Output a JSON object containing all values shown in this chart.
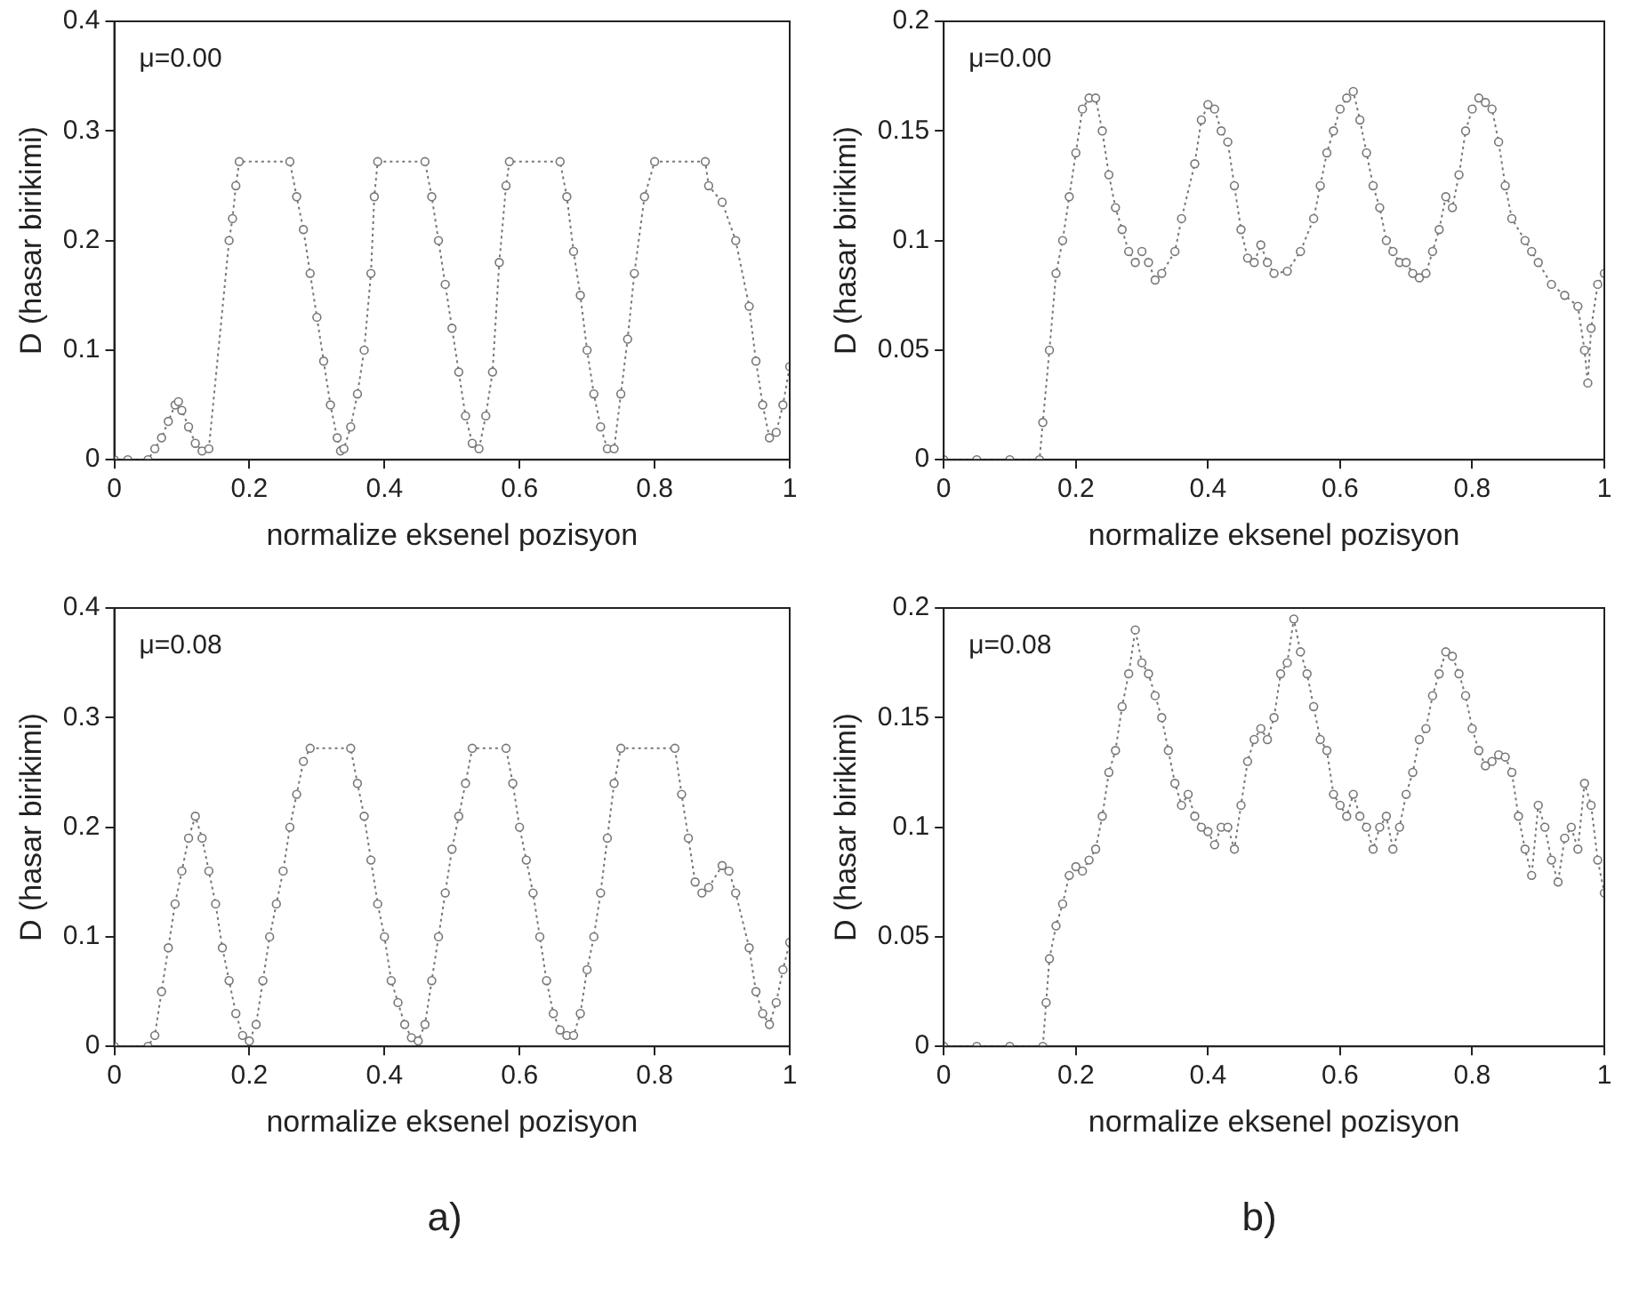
{
  "chart_data": [
    {
      "type": "line",
      "xlabel": "normalize eksenel pozisyon",
      "ylabel": "D (hasar birikimi)",
      "annotations": [
        "μ=0.00"
      ],
      "xlim": [
        0,
        1
      ],
      "xticks": [
        0,
        0.2,
        0.4,
        0.6,
        0.8,
        1
      ],
      "ylim": [
        0,
        0.4
      ],
      "yticks": [
        0,
        0.1,
        0.2,
        0.3,
        0.4
      ],
      "grid": false,
      "legend": false,
      "marker": "circle",
      "line_style": "dotted",
      "series": [
        {
          "color": "#777777",
          "x": [
            0,
            0.02,
            0.05,
            0.06,
            0.07,
            0.08,
            0.09,
            0.095,
            0.1,
            0.11,
            0.12,
            0.13,
            0.14,
            0.17,
            0.175,
            0.18,
            0.185,
            0.26,
            0.27,
            0.28,
            0.29,
            0.3,
            0.31,
            0.32,
            0.33,
            0.335,
            0.34,
            0.35,
            0.36,
            0.37,
            0.38,
            0.385,
            0.39,
            0.46,
            0.47,
            0.48,
            0.49,
            0.5,
            0.51,
            0.52,
            0.53,
            0.54,
            0.55,
            0.56,
            0.57,
            0.58,
            0.585,
            0.66,
            0.67,
            0.68,
            0.69,
            0.7,
            0.71,
            0.72,
            0.73,
            0.74,
            0.75,
            0.76,
            0.77,
            0.785,
            0.8,
            0.875,
            0.88,
            0.9,
            0.92,
            0.94,
            0.95,
            0.96,
            0.97,
            0.98,
            0.99,
            1
          ],
          "values": [
            0,
            0,
            0,
            0.01,
            0.02,
            0.035,
            0.05,
            0.053,
            0.045,
            0.03,
            0.015,
            0.008,
            0.01,
            0.2,
            0.22,
            0.25,
            0.272,
            0.272,
            0.24,
            0.21,
            0.17,
            0.13,
            0.09,
            0.05,
            0.02,
            0.008,
            0.01,
            0.03,
            0.06,
            0.1,
            0.17,
            0.24,
            0.272,
            0.272,
            0.24,
            0.2,
            0.16,
            0.12,
            0.08,
            0.04,
            0.015,
            0.01,
            0.04,
            0.08,
            0.18,
            0.25,
            0.272,
            0.272,
            0.24,
            0.19,
            0.15,
            0.1,
            0.06,
            0.03,
            0.01,
            0.01,
            0.06,
            0.11,
            0.17,
            0.24,
            0.272,
            0.272,
            0.25,
            0.235,
            0.2,
            0.14,
            0.09,
            0.05,
            0.02,
            0.025,
            0.05,
            0.085
          ]
        }
      ]
    },
    {
      "type": "line",
      "xlabel": "normalize eksenel pozisyon",
      "ylabel": "D (hasar birikimi)",
      "annotations": [
        "μ=0.00"
      ],
      "xlim": [
        0,
        1
      ],
      "xticks": [
        0,
        0.2,
        0.4,
        0.6,
        0.8,
        1
      ],
      "ylim": [
        0,
        0.2
      ],
      "yticks": [
        0,
        0.05,
        0.1,
        0.15,
        0.2
      ],
      "grid": false,
      "legend": false,
      "marker": "circle",
      "line_style": "dotted",
      "series": [
        {
          "color": "#777777",
          "x": [
            0,
            0.05,
            0.1,
            0.145,
            0.15,
            0.16,
            0.17,
            0.18,
            0.19,
            0.2,
            0.21,
            0.22,
            0.23,
            0.24,
            0.25,
            0.26,
            0.27,
            0.28,
            0.29,
            0.3,
            0.31,
            0.32,
            0.33,
            0.35,
            0.36,
            0.38,
            0.39,
            0.4,
            0.41,
            0.42,
            0.43,
            0.44,
            0.45,
            0.46,
            0.47,
            0.48,
            0.49,
            0.5,
            0.52,
            0.54,
            0.56,
            0.57,
            0.58,
            0.59,
            0.6,
            0.61,
            0.62,
            0.63,
            0.64,
            0.65,
            0.66,
            0.67,
            0.68,
            0.69,
            0.7,
            0.71,
            0.72,
            0.73,
            0.74,
            0.75,
            0.76,
            0.77,
            0.78,
            0.79,
            0.8,
            0.81,
            0.82,
            0.83,
            0.84,
            0.85,
            0.86,
            0.88,
            0.89,
            0.9,
            0.92,
            0.94,
            0.96,
            0.97,
            0.975,
            0.98,
            0.99,
            1
          ],
          "values": [
            0,
            0,
            0,
            0,
            0.017,
            0.05,
            0.085,
            0.1,
            0.12,
            0.14,
            0.16,
            0.165,
            0.165,
            0.15,
            0.13,
            0.115,
            0.105,
            0.095,
            0.09,
            0.095,
            0.09,
            0.082,
            0.085,
            0.095,
            0.11,
            0.135,
            0.155,
            0.162,
            0.16,
            0.15,
            0.145,
            0.125,
            0.105,
            0.092,
            0.09,
            0.098,
            0.09,
            0.085,
            0.086,
            0.095,
            0.11,
            0.125,
            0.14,
            0.15,
            0.16,
            0.165,
            0.168,
            0.155,
            0.14,
            0.125,
            0.115,
            0.1,
            0.095,
            0.09,
            0.09,
            0.085,
            0.083,
            0.085,
            0.095,
            0.105,
            0.12,
            0.115,
            0.13,
            0.15,
            0.16,
            0.165,
            0.163,
            0.16,
            0.145,
            0.125,
            0.11,
            0.1,
            0.095,
            0.09,
            0.08,
            0.075,
            0.07,
            0.05,
            0.035,
            0.06,
            0.08,
            0.085
          ]
        }
      ]
    },
    {
      "type": "line",
      "xlabel": "normalize eksenel pozisyon",
      "ylabel": "D (hasar birikimi)",
      "annotations": [
        "μ=0.08",
        "a)"
      ],
      "xlim": [
        0,
        1
      ],
      "xticks": [
        0,
        0.2,
        0.4,
        0.6,
        0.8,
        1
      ],
      "ylim": [
        0,
        0.4
      ],
      "yticks": [
        0,
        0.1,
        0.2,
        0.3,
        0.4
      ],
      "grid": false,
      "legend": false,
      "marker": "circle",
      "line_style": "dotted",
      "series": [
        {
          "color": "#777777",
          "x": [
            0,
            0.05,
            0.06,
            0.07,
            0.08,
            0.09,
            0.1,
            0.11,
            0.12,
            0.13,
            0.14,
            0.15,
            0.16,
            0.17,
            0.18,
            0.19,
            0.2,
            0.21,
            0.22,
            0.23,
            0.24,
            0.25,
            0.26,
            0.27,
            0.28,
            0.29,
            0.35,
            0.36,
            0.37,
            0.38,
            0.39,
            0.4,
            0.41,
            0.42,
            0.43,
            0.44,
            0.45,
            0.46,
            0.47,
            0.48,
            0.49,
            0.5,
            0.51,
            0.52,
            0.53,
            0.58,
            0.59,
            0.6,
            0.61,
            0.62,
            0.63,
            0.64,
            0.65,
            0.66,
            0.67,
            0.68,
            0.69,
            0.7,
            0.71,
            0.72,
            0.73,
            0.74,
            0.75,
            0.83,
            0.84,
            0.85,
            0.86,
            0.87,
            0.88,
            0.9,
            0.91,
            0.92,
            0.94,
            0.95,
            0.96,
            0.97,
            0.98,
            0.99,
            1
          ],
          "values": [
            0,
            0,
            0.01,
            0.05,
            0.09,
            0.13,
            0.16,
            0.19,
            0.21,
            0.19,
            0.16,
            0.13,
            0.09,
            0.06,
            0.03,
            0.01,
            0.005,
            0.02,
            0.06,
            0.1,
            0.13,
            0.16,
            0.2,
            0.23,
            0.26,
            0.272,
            0.272,
            0.24,
            0.21,
            0.17,
            0.13,
            0.1,
            0.06,
            0.04,
            0.02,
            0.008,
            0.005,
            0.02,
            0.06,
            0.1,
            0.14,
            0.18,
            0.21,
            0.24,
            0.272,
            0.272,
            0.24,
            0.2,
            0.17,
            0.14,
            0.1,
            0.06,
            0.03,
            0.015,
            0.01,
            0.01,
            0.03,
            0.07,
            0.1,
            0.14,
            0.19,
            0.24,
            0.272,
            0.272,
            0.23,
            0.19,
            0.15,
            0.14,
            0.145,
            0.165,
            0.16,
            0.14,
            0.09,
            0.05,
            0.03,
            0.02,
            0.04,
            0.07,
            0.095
          ]
        }
      ]
    },
    {
      "type": "line",
      "xlabel": "normalize eksenel pozisyon",
      "ylabel": "D (hasar birikimi)",
      "annotations": [
        "μ=0.08",
        "b)"
      ],
      "xlim": [
        0,
        1
      ],
      "xticks": [
        0,
        0.2,
        0.4,
        0.6,
        0.8,
        1
      ],
      "ylim": [
        0,
        0.2
      ],
      "yticks": [
        0,
        0.05,
        0.1,
        0.15,
        0.2
      ],
      "grid": false,
      "legend": false,
      "marker": "circle",
      "line_style": "dotted",
      "series": [
        {
          "color": "#777777",
          "x": [
            0,
            0.05,
            0.1,
            0.15,
            0.155,
            0.16,
            0.17,
            0.18,
            0.19,
            0.2,
            0.21,
            0.22,
            0.23,
            0.24,
            0.25,
            0.26,
            0.27,
            0.28,
            0.29,
            0.3,
            0.31,
            0.32,
            0.33,
            0.34,
            0.35,
            0.36,
            0.37,
            0.38,
            0.39,
            0.4,
            0.41,
            0.42,
            0.43,
            0.44,
            0.45,
            0.46,
            0.47,
            0.48,
            0.49,
            0.5,
            0.51,
            0.52,
            0.53,
            0.54,
            0.55,
            0.56,
            0.57,
            0.58,
            0.59,
            0.6,
            0.61,
            0.62,
            0.63,
            0.64,
            0.65,
            0.66,
            0.67,
            0.68,
            0.69,
            0.7,
            0.71,
            0.72,
            0.73,
            0.74,
            0.75,
            0.76,
            0.77,
            0.78,
            0.79,
            0.8,
            0.81,
            0.82,
            0.83,
            0.84,
            0.85,
            0.86,
            0.87,
            0.88,
            0.89,
            0.9,
            0.91,
            0.92,
            0.93,
            0.94,
            0.95,
            0.96,
            0.97,
            0.98,
            0.99,
            1
          ],
          "values": [
            0,
            0,
            0,
            0,
            0.02,
            0.04,
            0.055,
            0.065,
            0.078,
            0.082,
            0.08,
            0.085,
            0.09,
            0.105,
            0.125,
            0.135,
            0.155,
            0.17,
            0.19,
            0.175,
            0.17,
            0.16,
            0.15,
            0.135,
            0.12,
            0.11,
            0.115,
            0.105,
            0.1,
            0.098,
            0.092,
            0.1,
            0.1,
            0.09,
            0.11,
            0.13,
            0.14,
            0.145,
            0.14,
            0.15,
            0.17,
            0.175,
            0.195,
            0.18,
            0.17,
            0.155,
            0.14,
            0.135,
            0.115,
            0.11,
            0.105,
            0.115,
            0.105,
            0.1,
            0.09,
            0.1,
            0.105,
            0.09,
            0.1,
            0.115,
            0.125,
            0.14,
            0.145,
            0.16,
            0.17,
            0.18,
            0.178,
            0.17,
            0.16,
            0.145,
            0.135,
            0.128,
            0.13,
            0.133,
            0.132,
            0.125,
            0.105,
            0.09,
            0.078,
            0.11,
            0.1,
            0.085,
            0.075,
            0.095,
            0.1,
            0.09,
            0.12,
            0.11,
            0.085,
            0.07
          ]
        }
      ]
    }
  ]
}
